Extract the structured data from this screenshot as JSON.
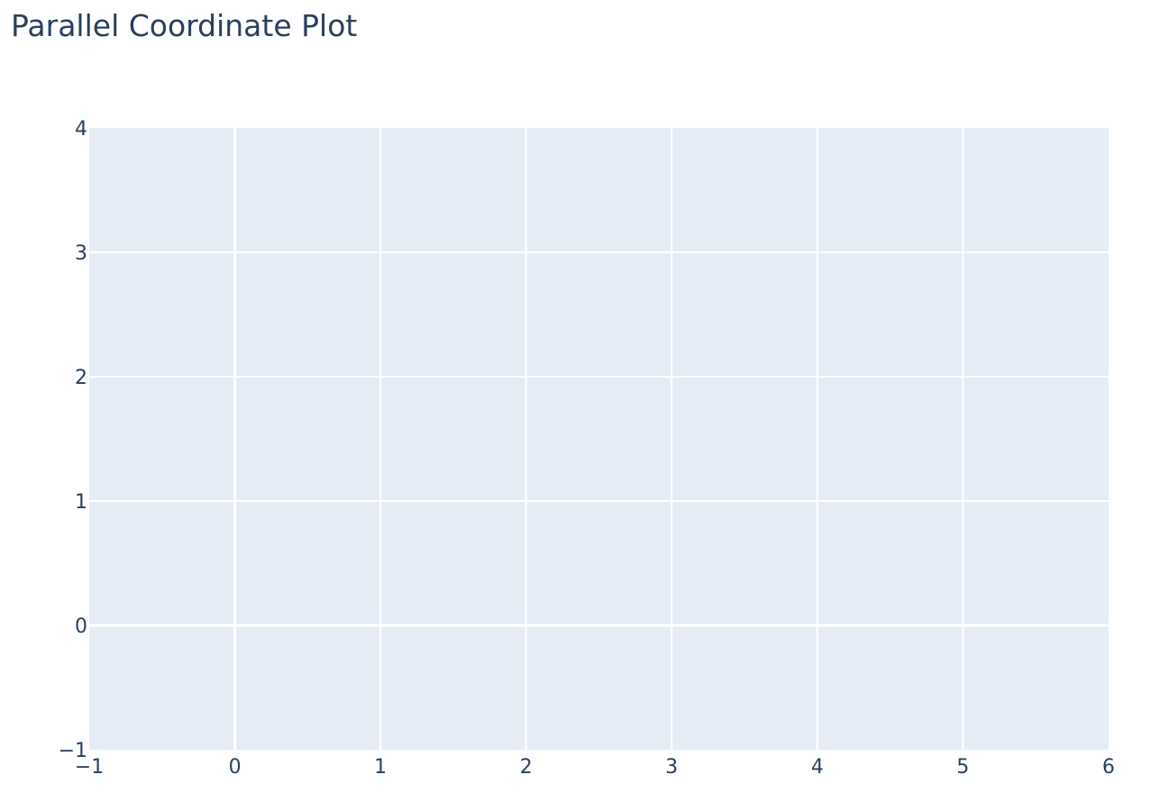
{
  "chart_data": {
    "type": "scatter",
    "title": "Parallel Coordinate Plot",
    "series": [],
    "xlim": [
      -1,
      6
    ],
    "ylim": [
      -1,
      4
    ],
    "x_ticks": [
      -1,
      0,
      1,
      2,
      3,
      4,
      5,
      6
    ],
    "y_ticks": [
      -1,
      0,
      1,
      2,
      3,
      4
    ],
    "x_tick_labels": [
      "−1",
      "0",
      "1",
      "2",
      "3",
      "4",
      "5",
      "6"
    ],
    "y_tick_labels": [
      "−1",
      "0",
      "1",
      "2",
      "3",
      "4"
    ],
    "grid": true,
    "colors": {
      "plot_background": "#e5ecf6",
      "grid": "#ffffff",
      "text": "#2a3f5f"
    }
  }
}
